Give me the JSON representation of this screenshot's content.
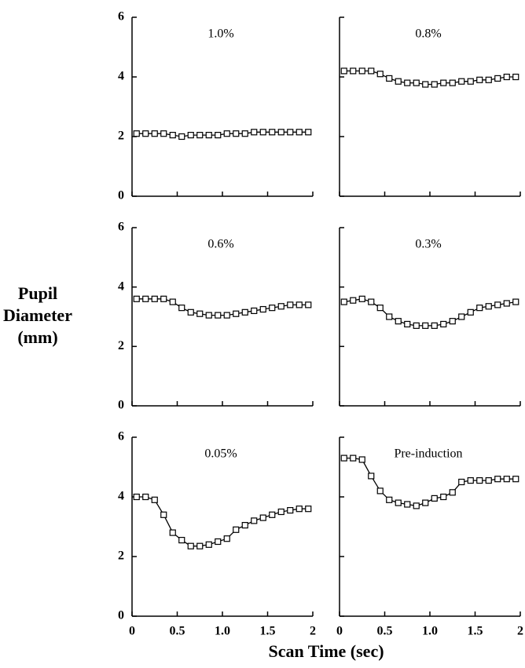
{
  "ylabel": [
    "Pupil",
    "Diameter",
    "(mm)"
  ],
  "xlabel": "Scan Time (sec)",
  "chart_data": [
    {
      "type": "line",
      "title": "1.0%",
      "x": [
        0.05,
        0.15,
        0.25,
        0.35,
        0.45,
        0.55,
        0.65,
        0.75,
        0.85,
        0.95,
        1.05,
        1.15,
        1.25,
        1.35,
        1.45,
        1.55,
        1.65,
        1.75,
        1.85,
        1.95
      ],
      "series": [
        {
          "color": "#000000",
          "values": [
            2.1,
            2.1,
            2.1,
            2.1,
            2.05,
            2.0,
            2.05,
            2.05,
            2.05,
            2.05,
            2.1,
            2.1,
            2.1,
            2.15,
            2.15,
            2.15,
            2.15,
            2.15,
            2.15,
            2.15
          ]
        }
      ],
      "xlim": [
        0,
        2
      ],
      "xticks": [
        0,
        0.5,
        1,
        1.5,
        2
      ],
      "ylim": [
        0,
        6
      ],
      "yticks": [
        0,
        2,
        4,
        6
      ]
    },
    {
      "type": "line",
      "title": "0.8%",
      "x": [
        0.05,
        0.15,
        0.25,
        0.35,
        0.45,
        0.55,
        0.65,
        0.75,
        0.85,
        0.95,
        1.05,
        1.15,
        1.25,
        1.35,
        1.45,
        1.55,
        1.65,
        1.75,
        1.85,
        1.95
      ],
      "series": [
        {
          "color": "#000000",
          "values": [
            4.2,
            4.2,
            4.2,
            4.2,
            4.1,
            3.95,
            3.85,
            3.8,
            3.8,
            3.75,
            3.75,
            3.8,
            3.8,
            3.85,
            3.85,
            3.9,
            3.9,
            3.95,
            4.0,
            4.0
          ]
        }
      ],
      "xlim": [
        0,
        2
      ],
      "xticks": [
        0,
        0.5,
        1,
        1.5,
        2
      ],
      "ylim": [
        0,
        6
      ],
      "yticks": [
        0,
        2,
        4,
        6
      ]
    },
    {
      "type": "line",
      "title": "0.6%",
      "x": [
        0.05,
        0.15,
        0.25,
        0.35,
        0.45,
        0.55,
        0.65,
        0.75,
        0.85,
        0.95,
        1.05,
        1.15,
        1.25,
        1.35,
        1.45,
        1.55,
        1.65,
        1.75,
        1.85,
        1.95
      ],
      "series": [
        {
          "color": "#000000",
          "values": [
            3.6,
            3.6,
            3.6,
            3.6,
            3.5,
            3.3,
            3.15,
            3.1,
            3.05,
            3.05,
            3.05,
            3.1,
            3.15,
            3.2,
            3.25,
            3.3,
            3.35,
            3.4,
            3.4,
            3.4
          ]
        }
      ],
      "xlim": [
        0,
        2
      ],
      "xticks": [
        0,
        0.5,
        1,
        1.5,
        2
      ],
      "ylim": [
        0,
        6
      ],
      "yticks": [
        0,
        2,
        4,
        6
      ]
    },
    {
      "type": "line",
      "title": "0.3%",
      "x": [
        0.05,
        0.15,
        0.25,
        0.35,
        0.45,
        0.55,
        0.65,
        0.75,
        0.85,
        0.95,
        1.05,
        1.15,
        1.25,
        1.35,
        1.45,
        1.55,
        1.65,
        1.75,
        1.85,
        1.95
      ],
      "series": [
        {
          "color": "#000000",
          "values": [
            3.5,
            3.55,
            3.6,
            3.5,
            3.3,
            3.0,
            2.85,
            2.75,
            2.7,
            2.7,
            2.7,
            2.75,
            2.85,
            3.0,
            3.15,
            3.3,
            3.35,
            3.4,
            3.45,
            3.5
          ]
        }
      ],
      "xlim": [
        0,
        2
      ],
      "xticks": [
        0,
        0.5,
        1,
        1.5,
        2
      ],
      "ylim": [
        0,
        6
      ],
      "yticks": [
        0,
        2,
        4,
        6
      ]
    },
    {
      "type": "line",
      "title": "0.05%",
      "x": [
        0.05,
        0.15,
        0.25,
        0.35,
        0.45,
        0.55,
        0.65,
        0.75,
        0.85,
        0.95,
        1.05,
        1.15,
        1.25,
        1.35,
        1.45,
        1.55,
        1.65,
        1.75,
        1.85,
        1.95
      ],
      "series": [
        {
          "color": "#000000",
          "values": [
            4.0,
            4.0,
            3.9,
            3.4,
            2.8,
            2.55,
            2.35,
            2.35,
            2.4,
            2.5,
            2.6,
            2.9,
            3.05,
            3.2,
            3.3,
            3.4,
            3.5,
            3.55,
            3.6,
            3.6
          ]
        }
      ],
      "xlim": [
        0,
        2
      ],
      "xticks": [
        0,
        0.5,
        {
          "value": 1,
          "label": "1.0"
        },
        1.5,
        2
      ],
      "ylim": [
        0,
        6
      ],
      "yticks": [
        0,
        2,
        4,
        6
      ]
    },
    {
      "type": "line",
      "title": "Pre-induction",
      "x": [
        0.05,
        0.15,
        0.25,
        0.35,
        0.45,
        0.55,
        0.65,
        0.75,
        0.85,
        0.95,
        1.05,
        1.15,
        1.25,
        1.35,
        1.45,
        1.55,
        1.65,
        1.75,
        1.85,
        1.95
      ],
      "series": [
        {
          "color": "#000000",
          "values": [
            5.3,
            5.3,
            5.25,
            4.7,
            4.2,
            3.9,
            3.8,
            3.75,
            3.7,
            3.8,
            3.95,
            4.0,
            4.15,
            4.5,
            4.55,
            4.55,
            4.55,
            4.6,
            4.6,
            4.6
          ]
        }
      ],
      "xlim": [
        0,
        2
      ],
      "xticks": [
        0,
        0.5,
        {
          "value": 1,
          "label": "1.0"
        },
        1.5,
        2
      ],
      "ylim": [
        0,
        6
      ],
      "yticks": [
        0,
        2,
        4,
        6
      ]
    }
  ]
}
